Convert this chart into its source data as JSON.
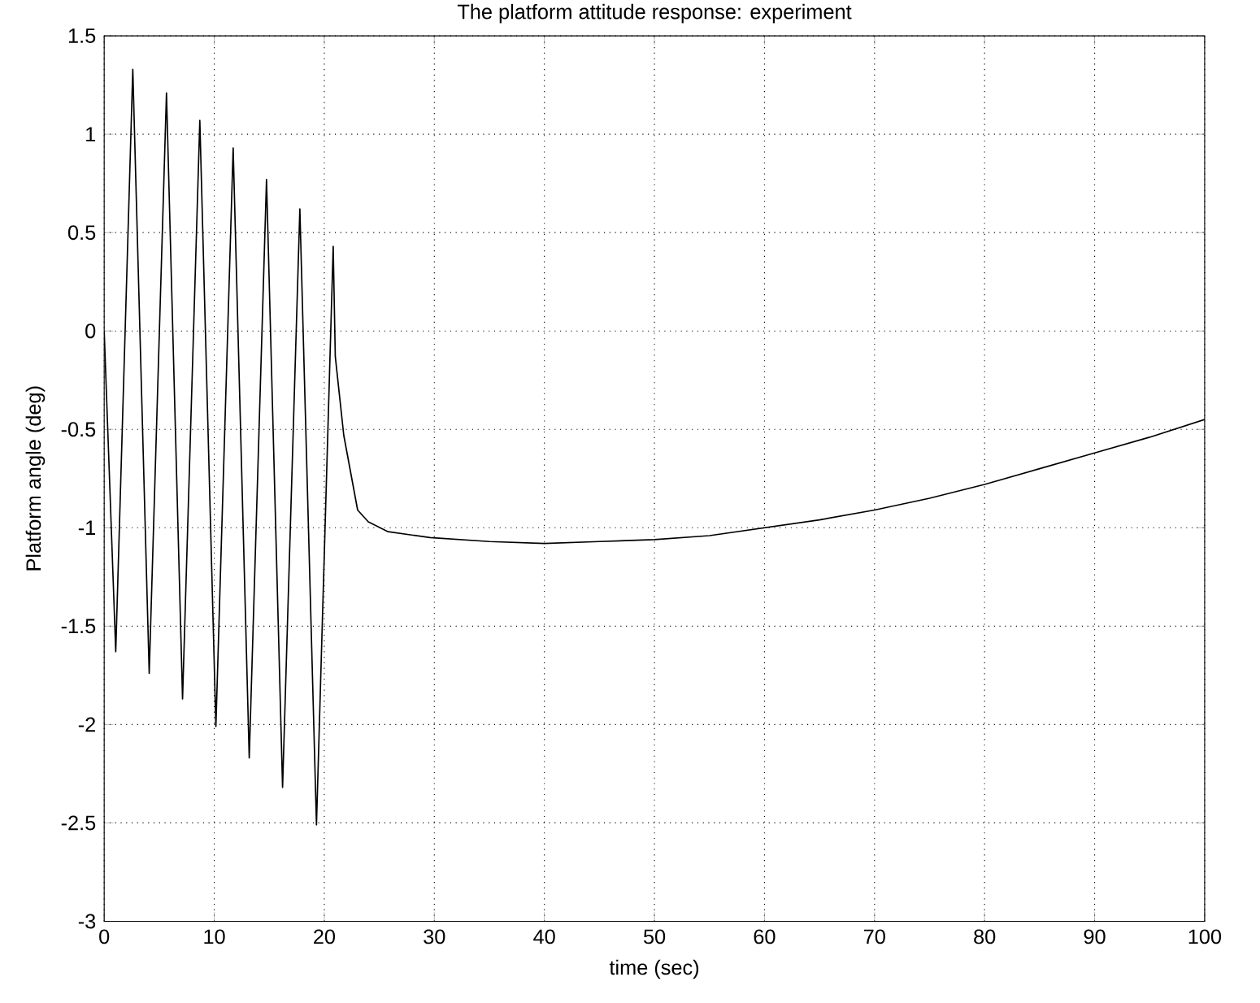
{
  "chart_data": {
    "type": "line",
    "title": "The platform attitude response: experiment",
    "xlabel": "time (sec)",
    "ylabel": "Platform angle (deg)",
    "xlim": [
      0,
      100
    ],
    "ylim": [
      -3,
      1.5
    ],
    "xticks": [
      0,
      10,
      20,
      30,
      40,
      50,
      60,
      70,
      80,
      90,
      100
    ],
    "yticks": [
      -3,
      -2.5,
      -2,
      -1.5,
      -1,
      -0.5,
      0,
      0.5,
      1,
      1.5
    ],
    "grid": true,
    "series": [
      {
        "color": "#000000",
        "x": [
          0,
          1.05,
          2.6,
          4.09,
          5.66,
          7.12,
          8.69,
          10.15,
          11.72,
          13.18,
          14.75,
          16.21,
          17.78,
          19.29,
          20.81,
          21.0,
          21.77,
          23.03,
          24.0,
          25.8,
          29.6,
          35,
          40,
          45,
          50,
          55,
          60,
          65,
          70,
          75,
          80,
          85,
          90,
          95,
          100
        ],
        "values": [
          0.0,
          -1.63,
          1.33,
          -1.74,
          1.21,
          -1.87,
          1.07,
          -2.01,
          0.93,
          -2.17,
          0.77,
          -2.32,
          0.62,
          -2.51,
          0.43,
          -0.13,
          -0.53,
          -0.91,
          -0.97,
          -1.02,
          -1.05,
          -1.07,
          -1.08,
          -1.07,
          -1.06,
          -1.04,
          -1.0,
          -0.96,
          -0.91,
          -0.85,
          -0.78,
          -0.7,
          -0.62,
          -0.54,
          -0.45
        ]
      }
    ]
  }
}
